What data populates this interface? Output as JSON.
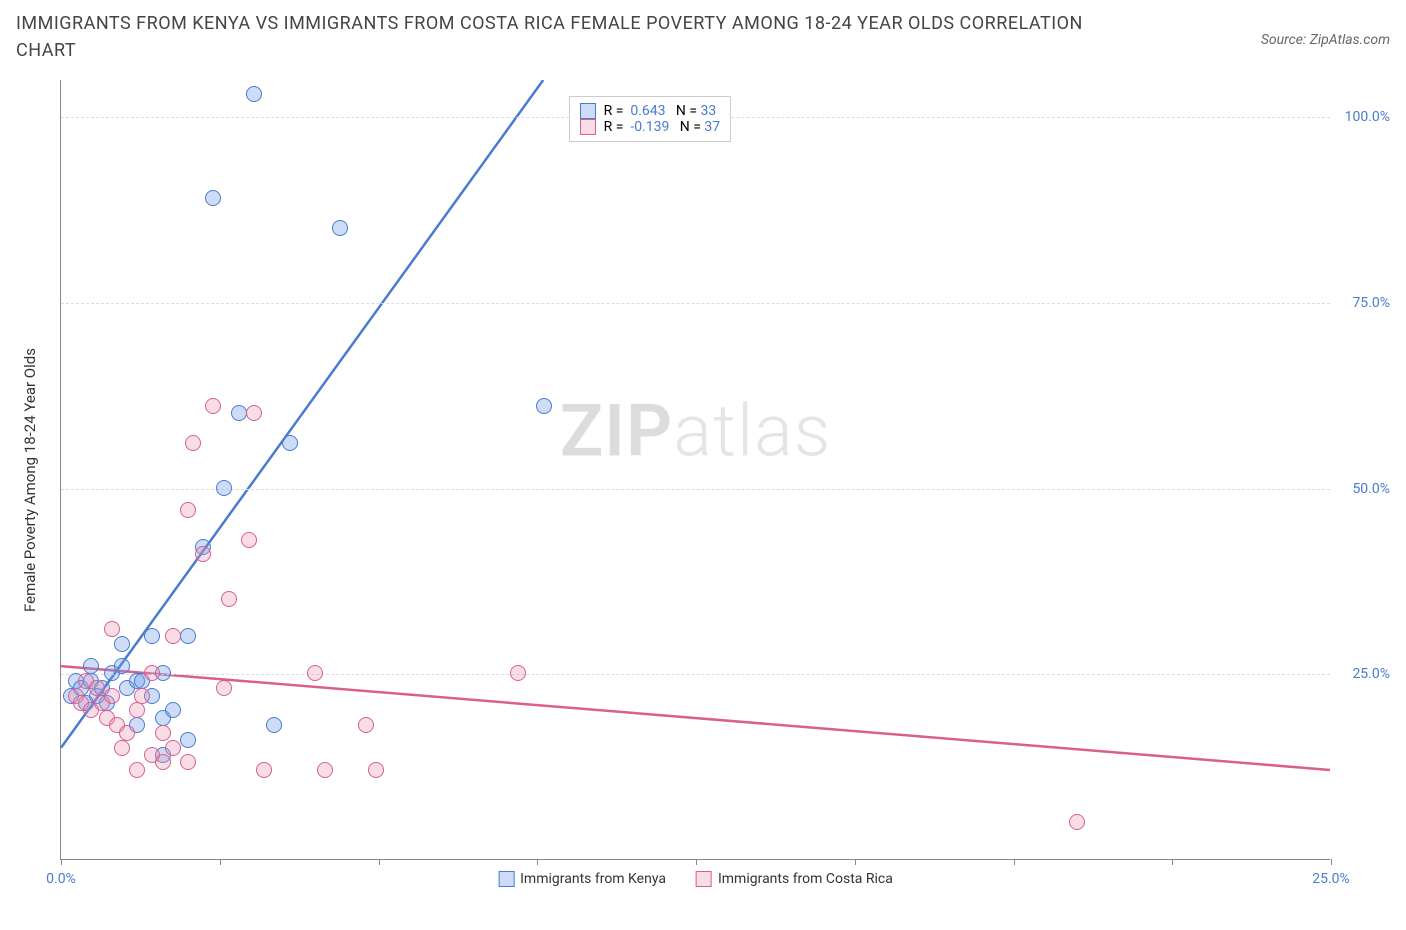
{
  "title": "IMMIGRANTS FROM KENYA VS IMMIGRANTS FROM COSTA RICA FEMALE POVERTY AMONG 18-24 YEAR OLDS CORRELATION CHART",
  "source": "Source: ZipAtlas.com",
  "ylabel": "Female Poverty Among 18-24 Year Olds",
  "watermark_a": "ZIP",
  "watermark_b": "atlas",
  "chart": {
    "type": "scatter",
    "xlim": [
      0,
      25
    ],
    "ylim": [
      0,
      105
    ],
    "xticks": [
      0,
      25
    ],
    "xtick_labels": [
      "0.0%",
      "25.0%"
    ],
    "xtick_marks": [
      0,
      3.125,
      6.25,
      9.375,
      12.5,
      15.625,
      18.75,
      21.875,
      25
    ],
    "yticks": [
      25,
      50,
      75,
      100
    ],
    "ytick_labels": [
      "25.0%",
      "50.0%",
      "75.0%",
      "100.0%"
    ],
    "grid_color": "#dddddd",
    "background_color": "#ffffff",
    "axis_color": "#888888",
    "tick_color": "#4a7bd0",
    "series": [
      {
        "name": "Immigrants from Kenya",
        "color": "#6f9fe8",
        "fill": "rgba(111,159,232,0.35)",
        "stroke": "#4a7bd0",
        "R": "0.643",
        "N": "33",
        "trend": {
          "x1": 0,
          "y1": 15,
          "x2": 9.5,
          "y2": 105
        },
        "points": [
          [
            0.2,
            22
          ],
          [
            0.3,
            24
          ],
          [
            0.4,
            23
          ],
          [
            0.5,
            21
          ],
          [
            0.6,
            26
          ],
          [
            0.6,
            24
          ],
          [
            0.7,
            22
          ],
          [
            0.8,
            23
          ],
          [
            0.9,
            21
          ],
          [
            1.0,
            25
          ],
          [
            1.2,
            26
          ],
          [
            1.3,
            23
          ],
          [
            1.5,
            24
          ],
          [
            1.5,
            18
          ],
          [
            1.6,
            24
          ],
          [
            1.8,
            22
          ],
          [
            2.0,
            25
          ],
          [
            2.0,
            19
          ],
          [
            2.2,
            20
          ],
          [
            2.0,
            14
          ],
          [
            1.2,
            29
          ],
          [
            2.5,
            30
          ],
          [
            2.8,
            42
          ],
          [
            3.2,
            50
          ],
          [
            3.5,
            60
          ],
          [
            4.2,
            18
          ],
          [
            4.5,
            56
          ],
          [
            3.8,
            103
          ],
          [
            3.0,
            89
          ],
          [
            5.5,
            85
          ],
          [
            9.5,
            61
          ],
          [
            2.5,
            16
          ],
          [
            1.8,
            30
          ]
        ]
      },
      {
        "name": "Immigrants from Costa Rica",
        "color": "#e78fb0",
        "fill": "rgba(231,143,176,0.30)",
        "stroke": "#d85f8f",
        "R": "-0.139",
        "N": "37",
        "trend": {
          "x1": 0,
          "y1": 26,
          "x2": 25,
          "y2": 12
        },
        "points": [
          [
            0.3,
            22
          ],
          [
            0.4,
            21
          ],
          [
            0.5,
            24
          ],
          [
            0.6,
            20
          ],
          [
            0.7,
            23
          ],
          [
            0.8,
            21
          ],
          [
            0.9,
            19
          ],
          [
            1.0,
            22
          ],
          [
            1.1,
            18
          ],
          [
            1.2,
            15
          ],
          [
            1.3,
            17
          ],
          [
            1.5,
            20
          ],
          [
            1.5,
            12
          ],
          [
            1.6,
            22
          ],
          [
            1.8,
            14
          ],
          [
            1.8,
            25
          ],
          [
            2.0,
            13
          ],
          [
            2.0,
            17
          ],
          [
            2.2,
            15
          ],
          [
            2.2,
            30
          ],
          [
            2.5,
            13
          ],
          [
            2.5,
            47
          ],
          [
            2.6,
            56
          ],
          [
            2.8,
            41
          ],
          [
            3.0,
            61
          ],
          [
            3.2,
            23
          ],
          [
            3.3,
            35
          ],
          [
            3.7,
            43
          ],
          [
            3.8,
            60
          ],
          [
            4.0,
            12
          ],
          [
            5.0,
            25
          ],
          [
            5.2,
            12
          ],
          [
            6.0,
            18
          ],
          [
            6.2,
            12
          ],
          [
            9.0,
            25
          ],
          [
            20.0,
            5
          ],
          [
            1.0,
            31
          ]
        ]
      }
    ],
    "legend_box": {
      "left_pct": 40,
      "top_pct": 2
    },
    "legend_bottom": [
      {
        "label": "Immigrants from Kenya",
        "fill": "rgba(111,159,232,0.35)",
        "stroke": "#4a7bd0"
      },
      {
        "label": "Immigrants from Costa Rica",
        "fill": "rgba(231,143,176,0.30)",
        "stroke": "#d85f8f"
      }
    ]
  }
}
